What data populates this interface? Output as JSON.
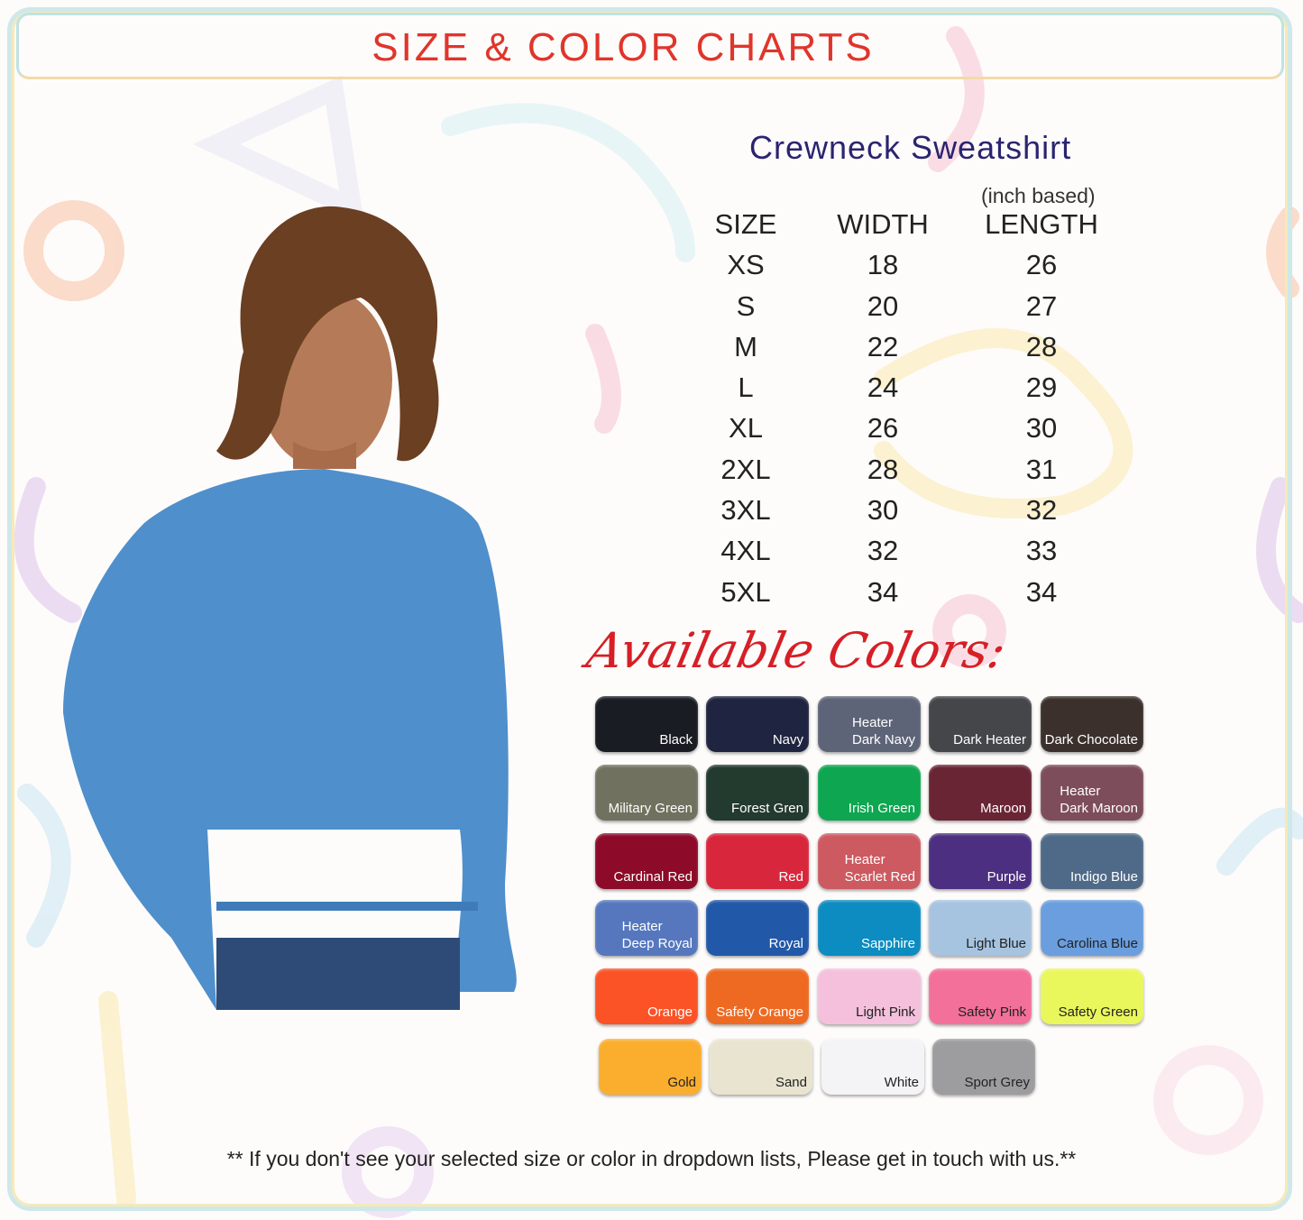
{
  "header": {
    "title": "SIZE & COLOR CHARTS"
  },
  "product": {
    "name": "Crewneck Sweatshirt",
    "unit_note": "(inch based)"
  },
  "size_table": {
    "headers": [
      "SIZE",
      "WIDTH",
      "LENGTH"
    ],
    "rows": [
      [
        "XS",
        "18",
        "26"
      ],
      [
        "S",
        "20",
        "27"
      ],
      [
        "M",
        "22",
        "28"
      ],
      [
        "L",
        "24",
        "29"
      ],
      [
        "XL",
        "26",
        "30"
      ],
      [
        "2XL",
        "28",
        "31"
      ],
      [
        "3XL",
        "30",
        "32"
      ],
      [
        "4XL",
        "32",
        "33"
      ],
      [
        "5XL",
        "34",
        "34"
      ]
    ]
  },
  "colors_heading": "Available Colors:",
  "colors": [
    {
      "label": "Black",
      "hex": "#1a1c24",
      "text": "#ffffff"
    },
    {
      "label": "Navy",
      "hex": "#1f2440",
      "text": "#ffffff"
    },
    {
      "label": "Heater\nDark Navy",
      "hex": "#5e6478",
      "text": "#ffffff"
    },
    {
      "label": "Dark  Heater",
      "hex": "#45464a",
      "text": "#ffffff"
    },
    {
      "label": "Dark  Chocolate",
      "hex": "#3b302c",
      "text": "#ffffff"
    },
    {
      "label": "Military Green",
      "hex": "#70725f",
      "text": "#ffffff"
    },
    {
      "label": "Forest Gren",
      "hex": "#233a2f",
      "text": "#ffffff"
    },
    {
      "label": "Irish Green",
      "hex": "#0ea650",
      "text": "#ffffff"
    },
    {
      "label": "Maroon",
      "hex": "#6a2535",
      "text": "#ffffff"
    },
    {
      "label": "Heater\nDark Maroon",
      "hex": "#7d4d5b",
      "text": "#ffffff"
    },
    {
      "label": "Cardinal Red",
      "hex": "#8d0a28",
      "text": "#ffffff"
    },
    {
      "label": "Red",
      "hex": "#d8273c",
      "text": "#ffffff"
    },
    {
      "label": "Heater\nScarlet Red",
      "hex": "#cc5a60",
      "text": "#ffffff"
    },
    {
      "label": "Purple",
      "hex": "#4c2f80",
      "text": "#ffffff"
    },
    {
      "label": "Indigo Blue",
      "hex": "#4f6a88",
      "text": "#ffffff"
    },
    {
      "label": "Heater\nDeep Royal",
      "hex": "#5677bd",
      "text": "#ffffff"
    },
    {
      "label": "Royal",
      "hex": "#2158a8",
      "text": "#ffffff"
    },
    {
      "label": "Sapphire",
      "hex": "#0c8cc0",
      "text": "#ffffff"
    },
    {
      "label": "Light Blue",
      "hex": "#a6c4e0",
      "text": "#222222"
    },
    {
      "label": "Carolina Blue",
      "hex": "#6a9ede",
      "text": "#222222"
    },
    {
      "label": "Orange",
      "hex": "#fb5226",
      "text": "#ffffff"
    },
    {
      "label": "Safety Orange",
      "hex": "#ee6a22",
      "text": "#ffffff"
    },
    {
      "label": "Light Pink",
      "hex": "#f4c0dc",
      "text": "#222222"
    },
    {
      "label": "Safety Pink",
      "hex": "#f3709b",
      "text": "#222222"
    },
    {
      "label": "Safety Green",
      "hex": "#e9f75c",
      "text": "#222222"
    },
    {
      "label": "Gold",
      "hex": "#fbae2e",
      "text": "#222222"
    },
    {
      "label": "Sand",
      "hex": "#e8e4d0",
      "text": "#222222"
    },
    {
      "label": "White",
      "hex": "#f4f4f6",
      "text": "#222222"
    },
    {
      "label": "Sport Grey",
      "hex": "#9d9d9f",
      "text": "#222222"
    }
  ],
  "footer": "** If you don't see your selected size or color in dropdown lists, Please get in touch with us.**"
}
